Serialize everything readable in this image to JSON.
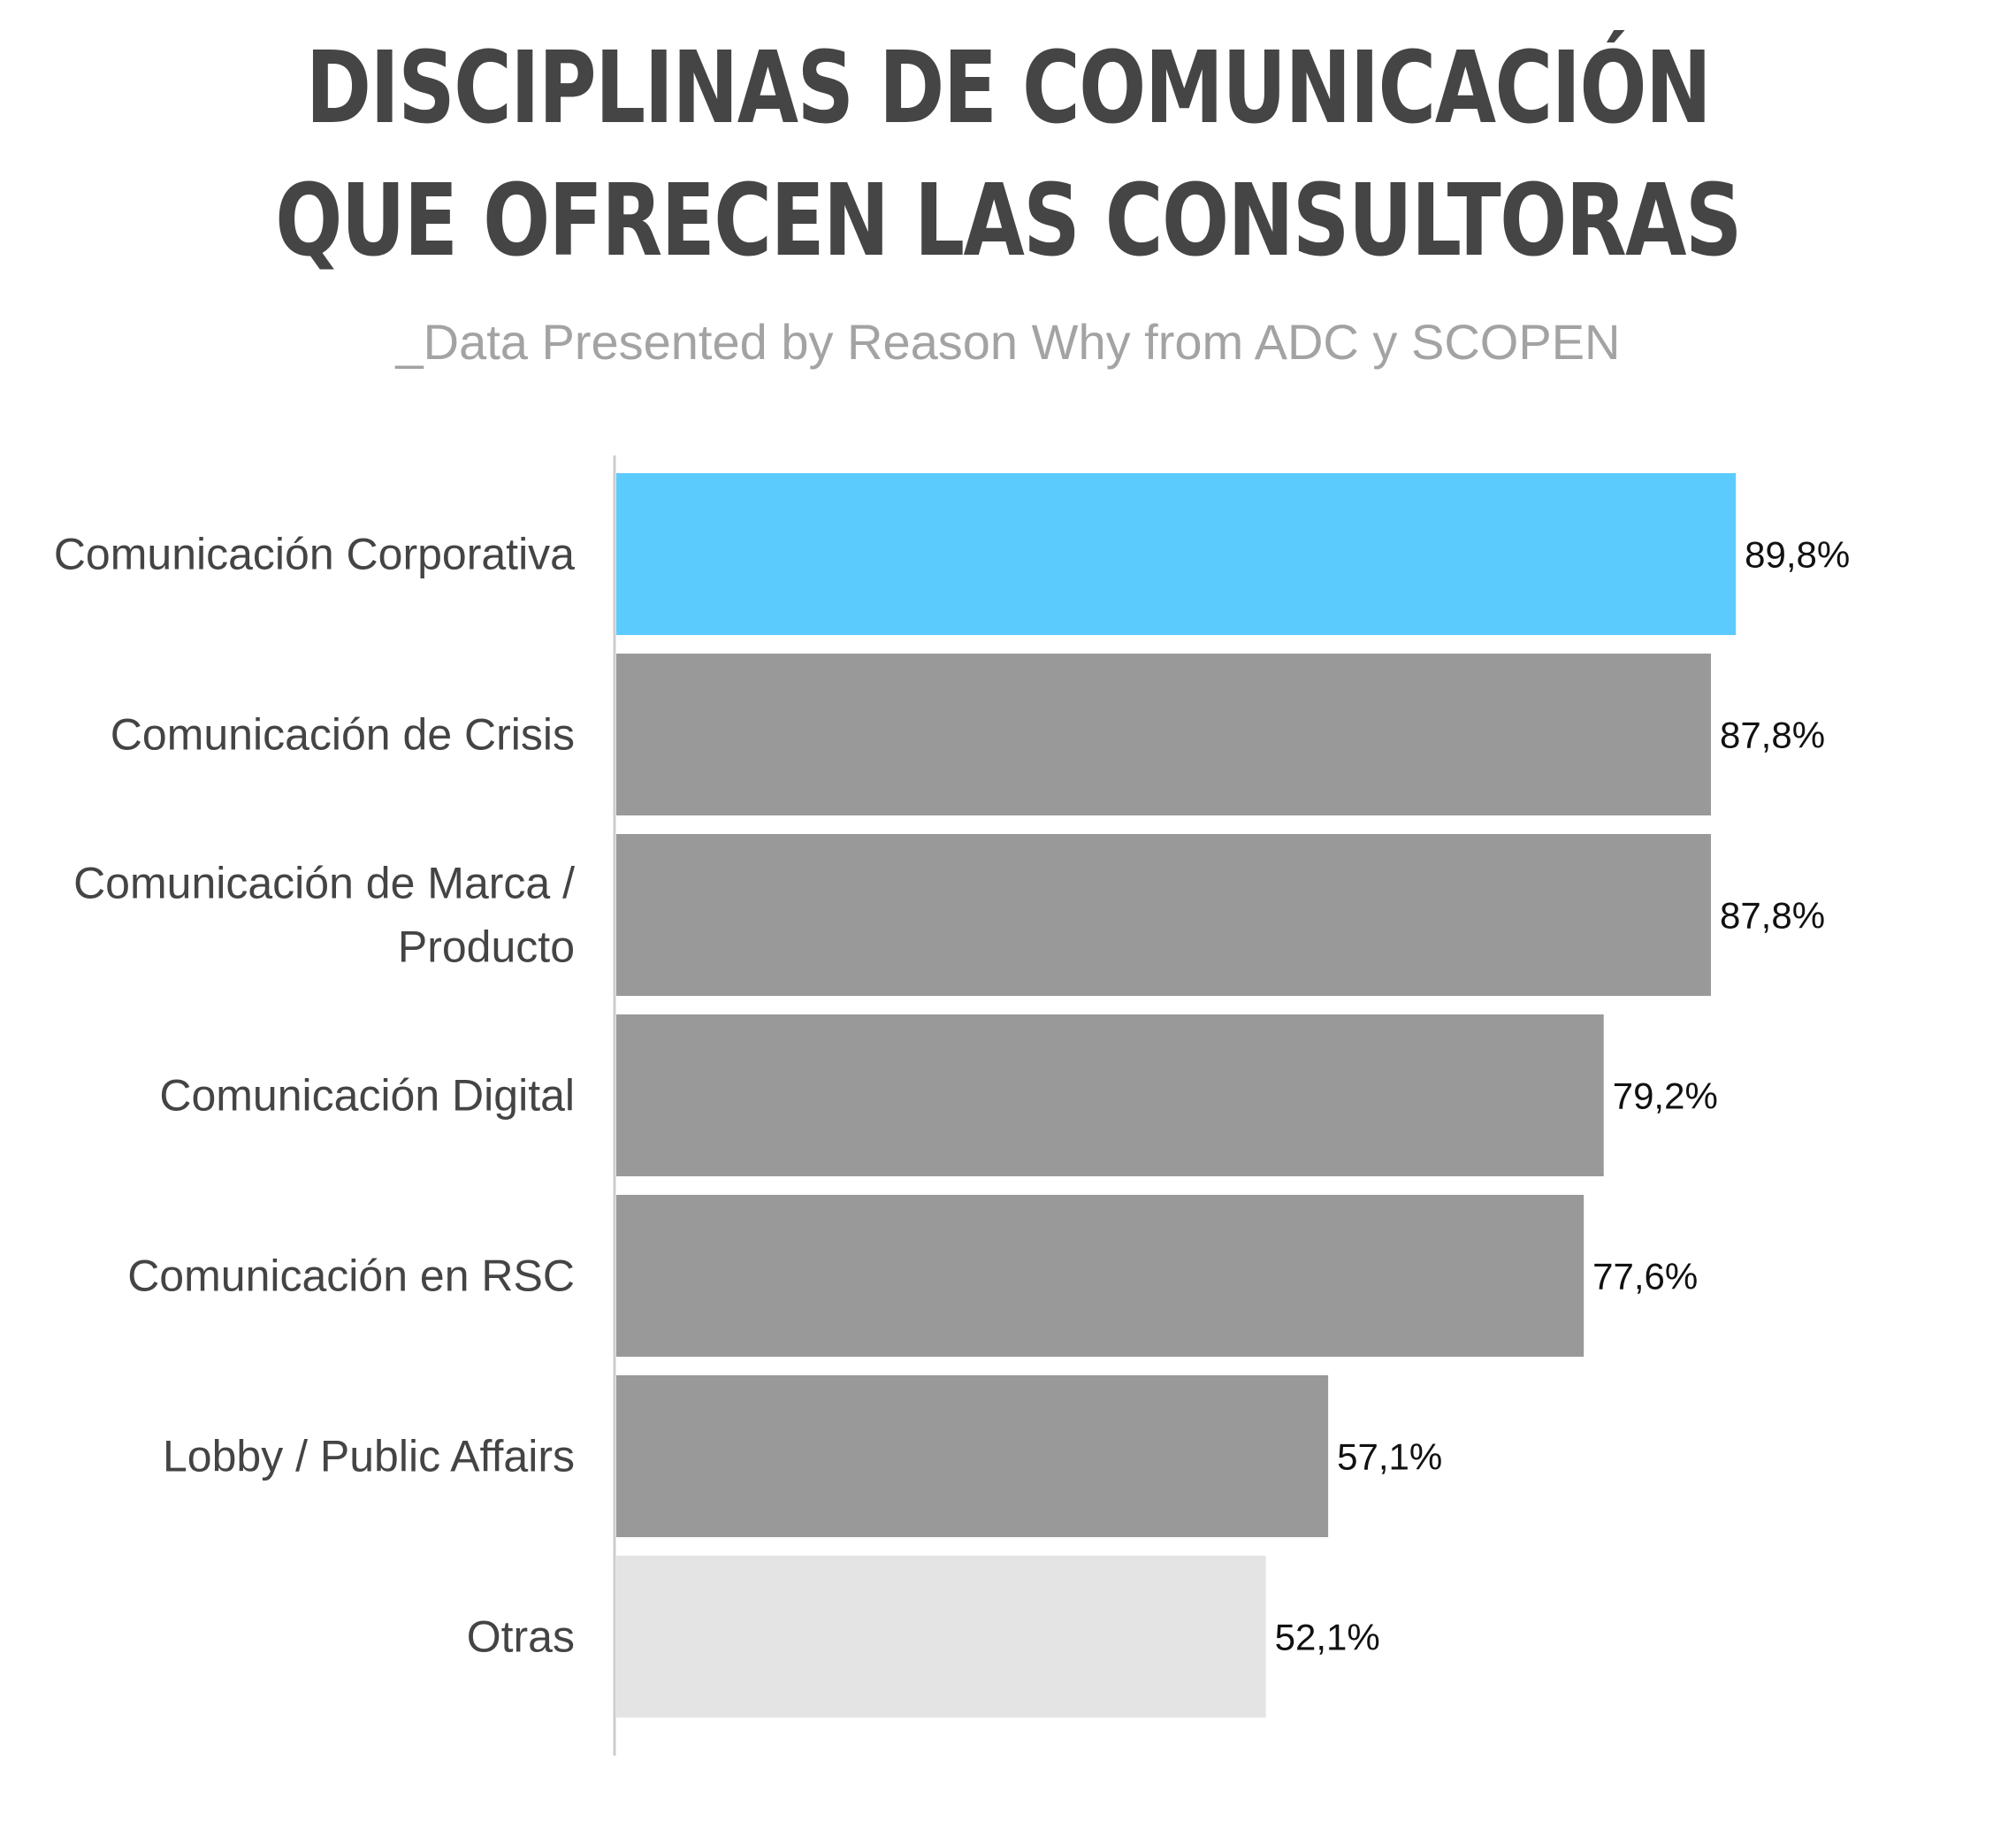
{
  "title_line1": "DISCIPLINAS DE COMUNICACIÓN",
  "title_line2": "QUE OFRECEN LAS CONSULTORAS",
  "subtitle": "_Data Presented by Reason Why from ADC y SCOPEN",
  "chart_data": {
    "type": "bar",
    "orientation": "horizontal",
    "title": "DISCIPLINAS DE COMUNICACIÓN QUE OFRECEN LAS CONSULTORAS",
    "subtitle": "_Data Presented by Reason Why from ADC y SCOPEN",
    "categories": [
      [
        "Comunicación Corporativa"
      ],
      [
        "Comunicación de Crisis"
      ],
      [
        "Comunicación de Marca /",
        "Producto"
      ],
      [
        "Comunicación Digital"
      ],
      [
        "Comunicación en RSC"
      ],
      [
        "Lobby / Public Affairs"
      ],
      [
        "Otras"
      ]
    ],
    "values": [
      89.8,
      87.8,
      87.8,
      79.2,
      77.6,
      57.1,
      52.1
    ],
    "value_labels": [
      "89,8%",
      "87,8%",
      "87,8%",
      "79,2%",
      "77,6%",
      "57,1%",
      "52,1%"
    ],
    "bar_colors": [
      "#5bcbfd",
      "#999999",
      "#999999",
      "#999999",
      "#999999",
      "#999999",
      "#e4e4e4"
    ],
    "axis_color": "#cccccc",
    "xlim": [
      0,
      100
    ],
    "grid": false,
    "legend": "none"
  }
}
